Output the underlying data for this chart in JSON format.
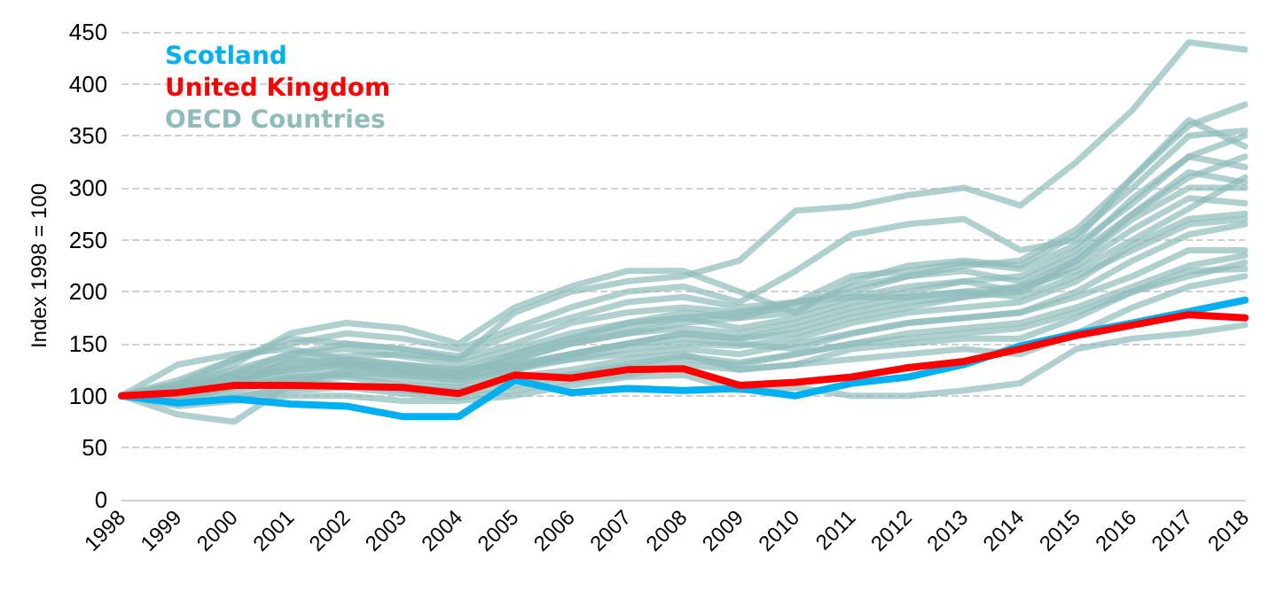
{
  "chart_data": {
    "type": "line",
    "ylabel": "Index 1998 = 100",
    "categories": [
      "1998",
      "1999",
      "2000",
      "2001",
      "2002",
      "2003",
      "2004",
      "2005",
      "2006",
      "2007",
      "2008",
      "2009",
      "2010",
      "2011",
      "2012",
      "2013",
      "2014",
      "2015",
      "2016",
      "2017",
      "2018"
    ],
    "ylim": [
      0,
      450
    ],
    "yticks": [
      0,
      50,
      100,
      150,
      200,
      250,
      300,
      350,
      400,
      450
    ],
    "grid": "y",
    "legend": "top left",
    "marker": "none",
    "line_style": "solid",
    "series": [
      {
        "name": "Scotland",
        "color": "#00b0f0",
        "values": [
          100,
          93,
          97,
          92,
          90,
          80,
          80,
          115,
          103,
          107,
          105,
          107,
          100,
          112,
          118,
          130,
          148,
          160,
          170,
          181,
          192
        ]
      },
      {
        "name": "United Kingdom",
        "color": "#ff0000",
        "values": [
          100,
          103,
          110,
          110,
          109,
          108,
          102,
          120,
          117,
          125,
          126,
          110,
          113,
          118,
          127,
          133,
          145,
          158,
          168,
          178,
          175
        ]
      },
      {
        "name": "OECD Countries",
        "color": "#8fbcbb",
        "values": [
          100,
          110,
          125,
          140,
          150,
          145,
          135,
          180,
          200,
          210,
          215,
          230,
          278,
          282,
          293,
          300,
          283,
          325,
          375,
          440,
          433
        ]
      },
      {
        "color": "#8fbcbb",
        "values": [
          100,
          115,
          135,
          150,
          160,
          155,
          145,
          165,
          185,
          200,
          205,
          190,
          220,
          255,
          265,
          270,
          240,
          250,
          310,
          360,
          380
        ]
      },
      {
        "color": "#8fbcbb",
        "values": [
          100,
          105,
          120,
          130,
          135,
          130,
          125,
          140,
          155,
          165,
          175,
          180,
          190,
          200,
          215,
          225,
          230,
          260,
          310,
          365,
          340
        ]
      },
      {
        "color": "#8fbcbb",
        "values": [
          100,
          110,
          130,
          160,
          170,
          165,
          150,
          185,
          205,
          220,
          220,
          200,
          180,
          210,
          225,
          230,
          225,
          255,
          300,
          350,
          355
        ]
      },
      {
        "color": "#8fbcbb",
        "values": [
          100,
          95,
          110,
          135,
          130,
          125,
          120,
          135,
          150,
          160,
          170,
          175,
          180,
          195,
          205,
          210,
          215,
          240,
          290,
          330,
          320
        ]
      },
      {
        "color": "#8fbcbb",
        "values": [
          100,
          108,
          122,
          140,
          145,
          138,
          130,
          145,
          160,
          170,
          175,
          165,
          175,
          190,
          200,
          210,
          200,
          230,
          270,
          300,
          300
        ]
      },
      {
        "color": "#8fbcbb",
        "values": [
          100,
          102,
          115,
          125,
          128,
          122,
          118,
          130,
          140,
          150,
          160,
          155,
          165,
          180,
          190,
          195,
          200,
          225,
          260,
          290,
          285
        ]
      },
      {
        "color": "#8fbcbb",
        "values": [
          100,
          98,
          108,
          118,
          120,
          115,
          112,
          125,
          135,
          145,
          150,
          148,
          155,
          170,
          180,
          185,
          190,
          210,
          245,
          270,
          275
        ]
      },
      {
        "color": "#8fbcbb",
        "values": [
          100,
          105,
          115,
          120,
          122,
          120,
          118,
          128,
          135,
          140,
          145,
          140,
          150,
          160,
          170,
          175,
          180,
          200,
          230,
          255,
          265
        ]
      },
      {
        "color": "#8fbcbb",
        "values": [
          100,
          82,
          75,
          110,
          125,
          120,
          115,
          125,
          140,
          150,
          160,
          155,
          160,
          175,
          185,
          195,
          205,
          220,
          250,
          280,
          310
        ]
      },
      {
        "color": "#8fbcbb",
        "values": [
          100,
          130,
          140,
          145,
          135,
          130,
          125,
          130,
          140,
          150,
          155,
          150,
          145,
          160,
          170,
          175,
          180,
          195,
          215,
          240,
          240
        ]
      },
      {
        "color": "#8fbcbb",
        "values": [
          100,
          100,
          105,
          115,
          110,
          108,
          105,
          115,
          120,
          128,
          135,
          130,
          140,
          150,
          160,
          165,
          170,
          185,
          205,
          225,
          235
        ]
      },
      {
        "color": "#8fbcbb",
        "values": [
          100,
          95,
          100,
          105,
          108,
          102,
          98,
          105,
          115,
          120,
          130,
          125,
          130,
          135,
          140,
          145,
          140,
          160,
          185,
          205,
          215
        ]
      },
      {
        "color": "#8fbcbb",
        "values": [
          100,
          90,
          95,
          100,
          100,
          95,
          95,
          100,
          110,
          118,
          120,
          105,
          108,
          100,
          100,
          105,
          112,
          145,
          155,
          160,
          168
        ]
      },
      {
        "color": "#8fbcbb",
        "values": [
          100,
          103,
          110,
          115,
          118,
          110,
          108,
          118,
          125,
          135,
          140,
          125,
          130,
          145,
          150,
          155,
          155,
          175,
          200,
          215,
          228
        ]
      },
      {
        "color": "#8fbcbb",
        "values": [
          100,
          106,
          120,
          135,
          138,
          140,
          135,
          150,
          170,
          180,
          185,
          180,
          185,
          205,
          215,
          220,
          210,
          235,
          275,
          310,
          330
        ]
      },
      {
        "color": "#8fbcbb",
        "values": [
          100,
          112,
          135,
          155,
          150,
          145,
          138,
          160,
          175,
          190,
          195,
          185,
          190,
          215,
          220,
          228,
          222,
          245,
          285,
          330,
          350
        ]
      },
      {
        "color": "#8fbcbb",
        "values": [
          100,
          100,
          112,
          128,
          132,
          128,
          122,
          135,
          150,
          160,
          165,
          160,
          170,
          185,
          195,
          200,
          195,
          215,
          240,
          265,
          270
        ]
      },
      {
        "color": "#8fbcbb",
        "values": [
          100,
          92,
          98,
          108,
          110,
          105,
          102,
          110,
          120,
          130,
          138,
          132,
          140,
          150,
          155,
          160,
          165,
          180,
          200,
          220,
          222
        ]
      },
      {
        "color": "#8fbcbb",
        "values": [
          100,
          108,
          118,
          125,
          130,
          125,
          120,
          140,
          155,
          170,
          180,
          175,
          190,
          195,
          195,
          200,
          205,
          230,
          275,
          315,
          305
        ]
      }
    ]
  }
}
